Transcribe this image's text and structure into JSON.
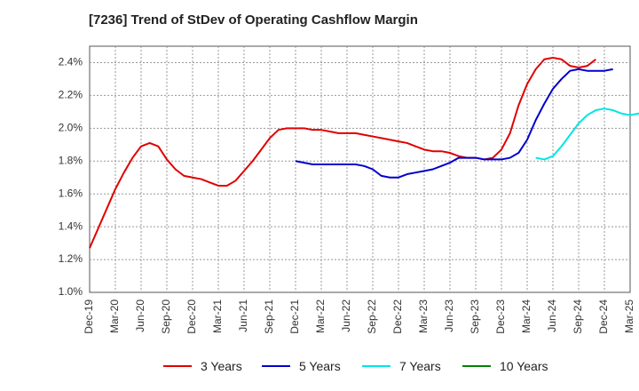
{
  "chart_data": {
    "type": "line",
    "title": "[7236]  Trend of StDev of Operating Cashflow Margin",
    "xlabel": "",
    "ylabel": "",
    "x_tick_labels": [
      "Dec-19",
      "Mar-20",
      "Jun-20",
      "Sep-20",
      "Dec-20",
      "Mar-21",
      "Jun-21",
      "Sep-21",
      "Dec-21",
      "Mar-22",
      "Jun-22",
      "Sep-22",
      "Dec-22",
      "Mar-23",
      "Jun-23",
      "Sep-23",
      "Dec-23",
      "Mar-24",
      "Jun-24",
      "Sep-24",
      "Dec-24",
      "Mar-25"
    ],
    "y_tick_labels": [
      "1.0%",
      "1.2%",
      "1.4%",
      "1.6%",
      "1.8%",
      "2.0%",
      "2.2%",
      "2.4%"
    ],
    "ylim": [
      1.0,
      2.5
    ],
    "y_unit": "%",
    "grid": true,
    "legend_position": "bottom",
    "series": [
      {
        "name": "3 Years",
        "color": "#e00000",
        "start_index": 0,
        "values": [
          1.27,
          1.39,
          1.51,
          1.63,
          1.73,
          1.82,
          1.89,
          1.91,
          1.89,
          1.81,
          1.75,
          1.71,
          1.7,
          1.69,
          1.67,
          1.65,
          1.65,
          1.68,
          1.74,
          1.8,
          1.87,
          1.94,
          1.99,
          2.0,
          2.0,
          2.0,
          1.99,
          1.99,
          1.98,
          1.97,
          1.97,
          1.97,
          1.96,
          1.95,
          1.94,
          1.93,
          1.92,
          1.91,
          1.89,
          1.87,
          1.86,
          1.86,
          1.85,
          1.83,
          1.82,
          1.82,
          1.81,
          1.82,
          1.87,
          1.97,
          2.14,
          2.27,
          2.36,
          2.42,
          2.43,
          2.42,
          2.38,
          2.37,
          2.38,
          2.42
        ]
      },
      {
        "name": "5 Years",
        "color": "#0000cc",
        "start_index": 24,
        "values": [
          1.8,
          1.79,
          1.78,
          1.78,
          1.78,
          1.78,
          1.78,
          1.78,
          1.77,
          1.75,
          1.71,
          1.7,
          1.7,
          1.72,
          1.73,
          1.74,
          1.75,
          1.77,
          1.79,
          1.82,
          1.82,
          1.82,
          1.81,
          1.81,
          1.81,
          1.82,
          1.85,
          1.93,
          2.05,
          2.15,
          2.24,
          2.3,
          2.35,
          2.36,
          2.35,
          2.35,
          2.35,
          2.36
        ]
      },
      {
        "name": "7 Years",
        "color": "#00e5e5",
        "start_index": 52,
        "values": [
          1.82,
          1.81,
          1.83,
          1.89,
          1.96,
          2.03,
          2.08,
          2.11,
          2.12,
          2.11,
          2.09,
          2.08,
          2.09,
          2.11
        ]
      },
      {
        "name": "10 Years",
        "color": "#008000",
        "start_index": 0,
        "values": []
      }
    ]
  }
}
